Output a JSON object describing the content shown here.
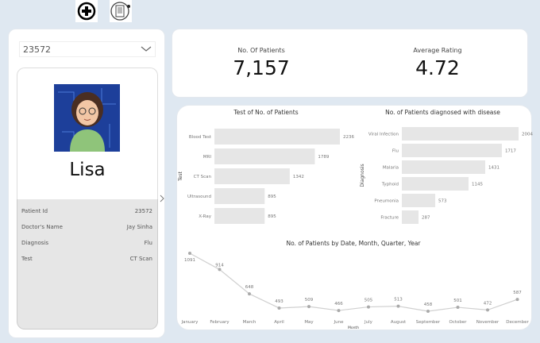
{
  "toolbar": {
    "icons": [
      "plus-circle-icon",
      "medical-report-icon"
    ]
  },
  "selector": {
    "value": "23572"
  },
  "profile": {
    "name": "Lisa",
    "avatar": "avatar-image"
  },
  "details": [
    {
      "label": "Patient Id",
      "value": "23572"
    },
    {
      "label": "Doctor's Name",
      "value": "Jay Sinha"
    },
    {
      "label": "Diagnosis",
      "value": "Flu"
    },
    {
      "label": "Test",
      "value": "CT Scan"
    }
  ],
  "kpis": [
    {
      "label": "No. Of Patients",
      "value": "7,157"
    },
    {
      "label": "Average Rating",
      "value": "4.72"
    }
  ],
  "chart_data": [
    {
      "type": "bar",
      "title": "Test of No. of Patients",
      "ylabel": "Test",
      "categories": [
        "Blood Test",
        "MRI",
        "CT Scan",
        "Ultrasound",
        "X-Ray"
      ],
      "values": [
        2236,
        1789,
        1342,
        895,
        895
      ],
      "bar_color": "#e6e6e6"
    },
    {
      "type": "bar",
      "title": "No. of Patients diagnosed with disease",
      "ylabel": "Diagnosis",
      "categories": [
        "Viral Infection",
        "Flu",
        "Malaria",
        "Typhoid",
        "Pneumonia",
        "Fracture"
      ],
      "values": [
        2004,
        1717,
        1431,
        1145,
        573,
        287
      ],
      "bar_color": "#e6e6e6"
    },
    {
      "type": "line",
      "title": "No. of Patients by Date, Month, Quarter, Year",
      "xlabel": "Month",
      "categories": [
        "January",
        "February",
        "March",
        "April",
        "May",
        "June",
        "July",
        "August",
        "September",
        "October",
        "November",
        "December"
      ],
      "values": [
        1091,
        914,
        648,
        493,
        509,
        466,
        505,
        513,
        458,
        501,
        472,
        587
      ],
      "line_color": "#d0d0d0",
      "marker_color": "#aaaaaa"
    }
  ]
}
